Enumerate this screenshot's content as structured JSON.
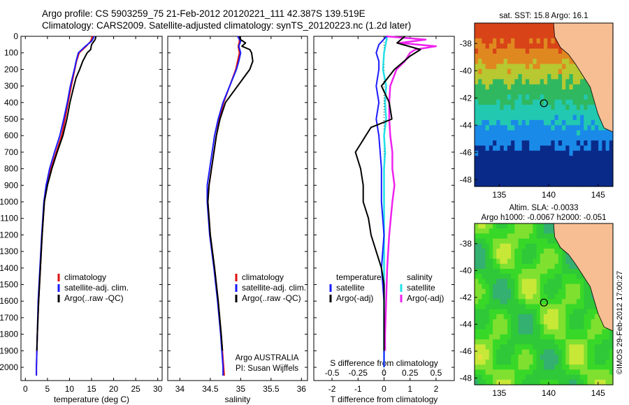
{
  "header": {
    "line1": "Argo profile: CS 5903259_75 21-Feb-2012 20120221_111 42.387S 139.519E",
    "line2": "Climatology: CARS2009. Satellite-adjusted climatology: synTS_20120223.nc (1.2d later)"
  },
  "colors": {
    "climatology": "#e01010",
    "satellite": "#1a1aff",
    "argo": "#000000",
    "sat_salinity": "#22e0e8",
    "argo_salinity": "#ee22ee",
    "land": "#f7be94"
  },
  "chart_data": [
    {
      "type": "line",
      "name": "temperature-panel",
      "xlabel": "temperature (deg C)",
      "ylabel": "",
      "xlim": [
        -1,
        31
      ],
      "ylim": [
        2080,
        0
      ],
      "xticks": [
        "0",
        "5",
        "10",
        "15",
        "20",
        "25",
        "30"
      ],
      "yticks": [
        "0",
        "100",
        "200",
        "300",
        "400",
        "500",
        "600",
        "700",
        "800",
        "900",
        "1000",
        "1100",
        "1200",
        "1300",
        "1400",
        "1500",
        "1600",
        "1700",
        "1800",
        "1900",
        "2000"
      ],
      "legend": [
        "climatology",
        "satellite-adj. clim.",
        "Argo(..raw -QC)"
      ],
      "legend_position": "lower-center",
      "series": [
        {
          "name": "climatology",
          "depth": [
            0,
            30,
            60,
            100,
            150,
            200,
            300,
            400,
            500,
            600,
            700,
            800,
            900,
            1000,
            1200,
            1400,
            1600,
            1800,
            2000,
            2050
          ],
          "values": [
            15.2,
            14.8,
            13.8,
            12.2,
            11.6,
            11.2,
            10.4,
            9.7,
            9.0,
            8.2,
            7.0,
            5.8,
            4.9,
            4.3,
            3.8,
            3.4,
            3.0,
            2.7,
            2.5,
            2.5
          ]
        },
        {
          "name": "satellite-adj. clim.",
          "depth": [
            0,
            30,
            60,
            100,
            150,
            200,
            300,
            400,
            500,
            600,
            700,
            800,
            900,
            1000,
            1200,
            1400,
            1600,
            1800,
            2000,
            2050
          ],
          "values": [
            15.6,
            15.0,
            13.6,
            12.0,
            11.5,
            11.1,
            10.2,
            9.5,
            8.7,
            7.8,
            6.6,
            5.5,
            4.7,
            4.2,
            3.7,
            3.3,
            2.9,
            2.7,
            2.5,
            2.5
          ]
        },
        {
          "name": "Argo(..raw -QC)",
          "depth": [
            0,
            20,
            50,
            80,
            100,
            150,
            200,
            250,
            300,
            400,
            500,
            600,
            700,
            800,
            900,
            1000,
            1200,
            1400,
            1600,
            1800,
            1900
          ],
          "values": [
            16.0,
            15.8,
            15.0,
            14.8,
            14.0,
            13.0,
            12.3,
            11.5,
            11.0,
            10.1,
            9.4,
            8.5,
            7.2,
            6.0,
            5.0,
            4.3,
            3.8,
            3.4,
            3.0,
            2.7,
            2.6
          ]
        }
      ]
    },
    {
      "type": "line",
      "name": "salinity-panel",
      "xlabel": "salinity",
      "xlim": [
        33.8,
        36.1
      ],
      "ylim": [
        2080,
        0
      ],
      "xticks": [
        "34",
        "34.5",
        "35",
        "35.5",
        "36"
      ],
      "legend": [
        "climatology",
        "satellite-adj. clim.",
        "Argo(..raw -QC)"
      ],
      "legend_position": "lower-center",
      "annotation": [
        "Argo AUSTRALIA",
        "PI: Susan Wijffels"
      ],
      "series": [
        {
          "name": "climatology",
          "depth": [
            0,
            30,
            60,
            100,
            150,
            200,
            300,
            400,
            500,
            600,
            700,
            800,
            900,
            1000,
            1200,
            1400,
            1600,
            1800,
            2000,
            2050
          ],
          "values": [
            34.97,
            34.98,
            34.96,
            34.98,
            34.95,
            34.92,
            34.82,
            34.72,
            34.65,
            34.6,
            34.56,
            34.52,
            34.48,
            34.46,
            34.5,
            34.57,
            34.63,
            34.68,
            34.72,
            34.73
          ]
        },
        {
          "name": "satellite-adj. clim.",
          "depth": [
            0,
            30,
            60,
            100,
            150,
            200,
            300,
            400,
            500,
            600,
            700,
            800,
            900,
            1000,
            1200,
            1400,
            1600,
            1800,
            2000,
            2050
          ],
          "values": [
            34.95,
            35.0,
            34.97,
            35.0,
            34.97,
            34.93,
            34.82,
            34.71,
            34.63,
            34.57,
            34.53,
            34.49,
            34.45,
            34.45,
            34.49,
            34.56,
            34.62,
            34.67,
            34.71,
            34.71
          ]
        },
        {
          "name": "Argo(..raw -QC)",
          "depth": [
            0,
            20,
            40,
            60,
            80,
            100,
            150,
            200,
            300,
            400,
            500,
            600,
            700,
            800,
            900,
            1000,
            1200,
            1400,
            1600,
            1800,
            1900
          ],
          "values": [
            34.98,
            35.0,
            35.08,
            35.02,
            35.15,
            35.18,
            35.2,
            35.15,
            34.95,
            34.75,
            34.66,
            34.6,
            34.56,
            34.52,
            34.48,
            34.46,
            34.5,
            34.57,
            34.63,
            34.68,
            34.7
          ]
        }
      ]
    },
    {
      "type": "line",
      "name": "difference-panel",
      "xlabel": "T difference from climatology",
      "x2label": "S difference from climatology",
      "xlim": [
        -2.7,
        2.7
      ],
      "ylim": [
        2080,
        0
      ],
      "xticks": [
        "-2",
        "-1",
        "0",
        "1",
        "2"
      ],
      "x2ticks": [
        "-0.5",
        "-0.25",
        "0",
        "0.25",
        "0.5"
      ],
      "legend_t": [
        "temperature",
        "satellite",
        "Argo(-adj)"
      ],
      "legend_s": [
        "salinity",
        "satellite",
        "Argo(-adj)"
      ],
      "series": [
        {
          "name": "temperature satellite",
          "depth": [
            0,
            50,
            100,
            150,
            200,
            300,
            400,
            500,
            600,
            800,
            1000,
            1200,
            1400,
            1600,
            1800,
            2000
          ],
          "values": [
            0.1,
            -0.2,
            -0.3,
            -0.2,
            -0.2,
            -0.3,
            -0.2,
            -0.3,
            -0.2,
            -0.1,
            -0.1,
            0,
            -0.1,
            0,
            0,
            0
          ]
        },
        {
          "name": "temperature Argo(-adj)",
          "depth": [
            0,
            40,
            80,
            120,
            200,
            300,
            400,
            500,
            550,
            600,
            650,
            700,
            750,
            800,
            900,
            1000,
            1100,
            1200,
            1300,
            1400,
            1500,
            1600,
            1700,
            1800,
            1900
          ],
          "values": [
            0.8,
            0.5,
            1.4,
            1.0,
            0.4,
            -0.1,
            0.2,
            0.3,
            -0.5,
            -0.7,
            -0.9,
            -1.1,
            -1.0,
            -0.9,
            -0.8,
            -0.8,
            -0.6,
            -0.5,
            -0.3,
            -0.1,
            0,
            0,
            0,
            0,
            0
          ]
        },
        {
          "name": "salinity satellite",
          "depth": [
            0,
            100,
            200,
            300,
            400,
            500,
            600,
            700,
            800,
            1000,
            1200,
            1400,
            1600,
            1800,
            2000
          ],
          "values": [
            0.03,
            0.0,
            -0.01,
            0.02,
            0.01,
            0.02,
            0.0,
            0.01,
            0.0,
            0.0,
            0.0,
            0.0,
            0.0,
            0.0,
            0.0
          ]
        },
        {
          "name": "salinity Argo(-adj)",
          "depth": [
            0,
            20,
            40,
            60,
            80,
            100,
            150,
            200,
            300,
            400,
            500,
            600,
            700,
            800,
            900,
            1000,
            1200,
            1400,
            1600,
            1800,
            1900
          ],
          "values": [
            0.02,
            0.4,
            0.15,
            0.5,
            0.3,
            0.25,
            0.2,
            0.12,
            0.06,
            0.05,
            0.05,
            0.06,
            0.08,
            0.08,
            0.1,
            0.08,
            0.05,
            0.03,
            0.02,
            0.01,
            0.01
          ]
        }
      ]
    },
    {
      "type": "heatmap",
      "name": "sst-map",
      "title": "sat. SST: 15.8  Argo: 16.1",
      "xlim": [
        132.5,
        146.5
      ],
      "ylim": [
        -48.5,
        -36.5
      ],
      "xticks": [
        "135",
        "140",
        "145"
      ],
      "yticks": [
        "-38",
        "-40",
        "-42",
        "-44",
        "-46",
        "-48"
      ],
      "marker": {
        "lon": 139.519,
        "lat": -42.387
      }
    },
    {
      "type": "heatmap",
      "name": "sla-map",
      "title": "Altim. SLA: -0.0033",
      "title2": "Argo h1000: -0.0067 h2000: -0.051",
      "xlim": [
        132.5,
        146.5
      ],
      "ylim": [
        -48.5,
        -36.5
      ],
      "xticks": [
        "135",
        "140",
        "145"
      ],
      "yticks": [
        "-38",
        "-40",
        "-42",
        "-44",
        "-46",
        "-48"
      ],
      "marker": {
        "lon": 139.519,
        "lat": -42.387
      }
    }
  ],
  "side_label": "©IMOS 29-Feb-2012 17:00:27"
}
